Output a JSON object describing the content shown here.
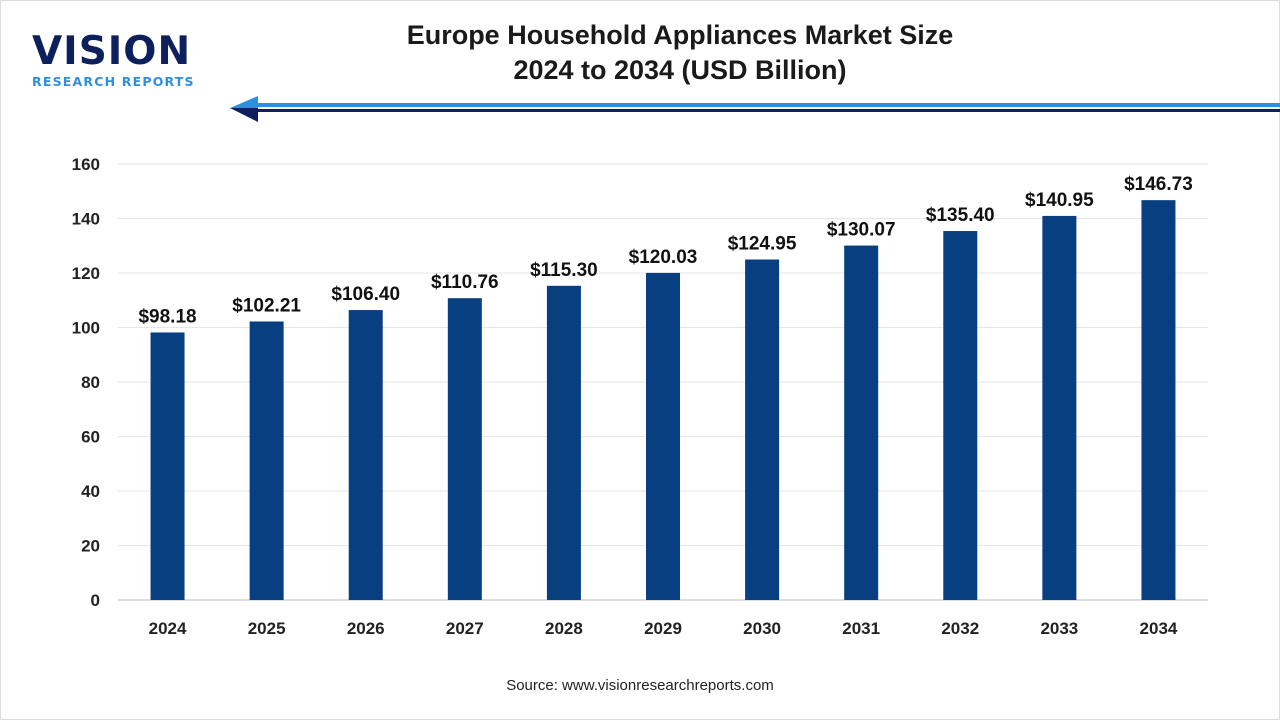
{
  "logo": {
    "main": "VISION",
    "sub": "RESEARCH REPORTS"
  },
  "header": {
    "title_line1": "Europe Household Appliances Market Size",
    "title_line2": "2024 to 2034 (USD Billion)"
  },
  "source": "Source: www.visionresearchreports.com",
  "colors": {
    "bar": "#073f80",
    "arrow_light": "#2e8fe0",
    "arrow_dark": "#0d1f5c"
  },
  "chart_data": {
    "type": "bar",
    "title": "Europe Household Appliances Market Size 2024 to 2034 (USD Billion)",
    "categories": [
      "2024",
      "2025",
      "2026",
      "2027",
      "2028",
      "2029",
      "2030",
      "2031",
      "2032",
      "2033",
      "2034"
    ],
    "values": [
      98.18,
      102.21,
      106.4,
      110.76,
      115.3,
      120.03,
      124.95,
      130.07,
      135.4,
      140.95,
      146.73
    ],
    "data_labels": [
      "$98.18",
      "$102.21",
      "$106.40",
      "$110.76",
      "$115.30",
      "$120.03",
      "$124.95",
      "$130.07",
      "$135.40",
      "$140.95",
      "$146.73"
    ],
    "yticks": [
      0,
      20,
      40,
      60,
      80,
      100,
      120,
      140,
      160
    ],
    "ylim": [
      0,
      160
    ],
    "grid": true,
    "xlabel": "",
    "ylabel": ""
  }
}
